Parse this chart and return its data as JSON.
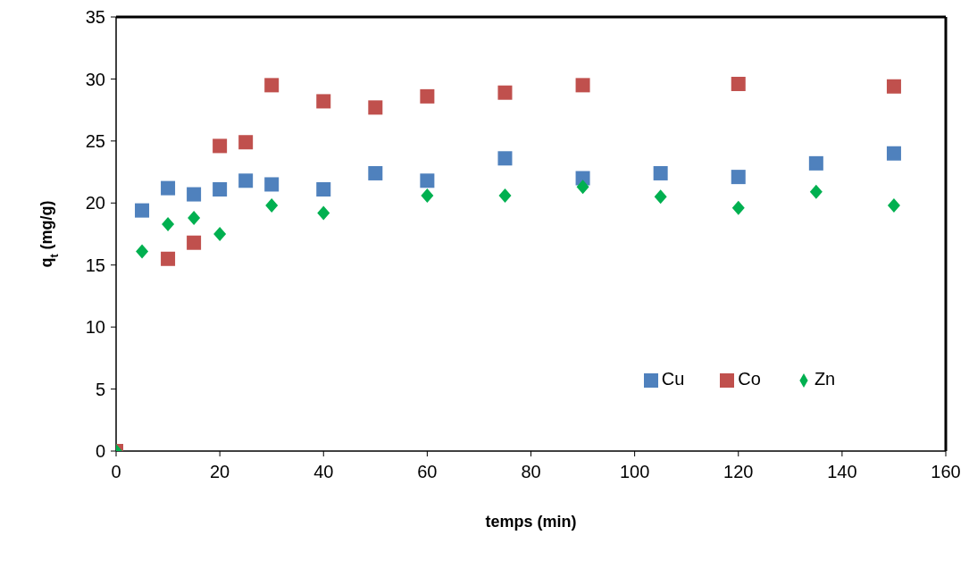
{
  "chart_data": {
    "type": "scatter",
    "xlabel": "temps (min)",
    "ylabel": "q$_{t}$ (mg/g)",
    "xlim": [
      0,
      160
    ],
    "xticks": [
      0,
      20,
      40,
      60,
      80,
      100,
      120,
      140,
      160
    ],
    "ylim": [
      0,
      35
    ],
    "yticks": [
      0,
      5,
      10,
      15,
      20,
      25,
      30,
      35
    ],
    "grid": false,
    "legend": "bottom right",
    "series": [
      {
        "name": "Cu",
        "color": "#4f81bd",
        "marker": "square",
        "x": [
          5,
          10,
          15,
          20,
          25,
          30,
          40,
          50,
          60,
          75,
          90,
          105,
          120,
          135,
          150
        ],
        "values": [
          19.4,
          21.2,
          20.7,
          21.1,
          21.8,
          21.5,
          21.1,
          22.4,
          21.8,
          23.6,
          22.0,
          22.4,
          22.1,
          23.2,
          24.0
        ]
      },
      {
        "name": "Co",
        "color": "#c0504d",
        "marker": "square",
        "x": [
          0,
          10,
          15,
          20,
          25,
          30,
          40,
          50,
          60,
          75,
          90,
          120,
          150
        ],
        "values": [
          0,
          15.5,
          16.8,
          24.6,
          24.9,
          29.5,
          28.2,
          27.7,
          28.6,
          28.9,
          29.5,
          29.6,
          29.4
        ]
      },
      {
        "name": "Zn",
        "color": "#00b050",
        "marker": "diamond",
        "x": [
          0,
          5,
          10,
          15,
          20,
          30,
          40,
          60,
          75,
          90,
          105,
          120,
          135,
          150
        ],
        "values": [
          0,
          16.1,
          18.3,
          18.8,
          17.5,
          19.8,
          19.2,
          20.6,
          20.6,
          21.3,
          20.5,
          19.6,
          20.9,
          19.8
        ]
      }
    ]
  }
}
